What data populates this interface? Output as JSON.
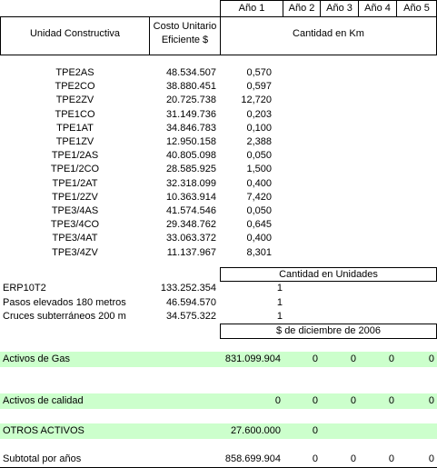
{
  "header": {
    "years": [
      "Año 1",
      "Año 2",
      "Año 3",
      "Año 4",
      "Año 5"
    ],
    "col_unit": "Unidad Constructiva",
    "col_cost_line1": "Costo Unitario",
    "col_cost_line2": "Eficiente $",
    "col_qty": "Cantidad en Km"
  },
  "km_rows": [
    {
      "name": "TPE2AS",
      "cost": "48.534.507",
      "qty": "0,570"
    },
    {
      "name": "TPE2CO",
      "cost": "38.880.451",
      "qty": "0,597"
    },
    {
      "name": "TPE2ZV",
      "cost": "20.725.738",
      "qty": "12,720"
    },
    {
      "name": "TPE1CO",
      "cost": "31.149.736",
      "qty": "0,203"
    },
    {
      "name": "TPE1AT",
      "cost": "34.846.783",
      "qty": "0,100"
    },
    {
      "name": "TPE1ZV",
      "cost": "12.950.158",
      "qty": "2,388"
    },
    {
      "name": "TPE1/2AS",
      "cost": "40.805.098",
      "qty": "0,050"
    },
    {
      "name": "TPE1/2CO",
      "cost": "28.585.925",
      "qty": "1,500"
    },
    {
      "name": "TPE1/2AT",
      "cost": "32.318.099",
      "qty": "0,400"
    },
    {
      "name": "TPE1/2ZV",
      "cost": "10.363.914",
      "qty": "7,420"
    },
    {
      "name": "TPE3/4AS",
      "cost": "41.574.546",
      "qty": "0,050"
    },
    {
      "name": "TPE3/4CO",
      "cost": "29.348.762",
      "qty": "0,645"
    },
    {
      "name": "TPE3/4AT",
      "cost": "33.063.372",
      "qty": "0,400"
    },
    {
      "name": "TPE3/4ZV",
      "cost": "11.137.967",
      "qty": "8,301"
    }
  ],
  "units_header": "Cantidad en Unidades",
  "unit_rows": [
    {
      "name": "ERP10T2",
      "cost": "133.252.354",
      "qty": "1"
    },
    {
      "name": "Pasos elevados 180 metros",
      "cost": "46.594.570",
      "qty": "1"
    },
    {
      "name": "Cruces subterráneos 200 m",
      "cost": "34.575.322",
      "qty": "1"
    }
  ],
  "money_header": "$ de diciembre de 2006",
  "summary_rows": [
    {
      "label": "Activos de Gas",
      "values": [
        "831.099.904",
        "0",
        "0",
        "0",
        "0"
      ]
    },
    {
      "label": "Activos de calidad",
      "values": [
        "0",
        "0",
        "0",
        "0",
        "0"
      ]
    },
    {
      "label": "OTROS ACTIVOS",
      "values": [
        "27.600.000",
        "0",
        "",
        "",
        ""
      ]
    },
    {
      "label": "Subtotal por años",
      "values": [
        "858.699.904",
        "0",
        "0",
        "0",
        "0"
      ]
    }
  ]
}
